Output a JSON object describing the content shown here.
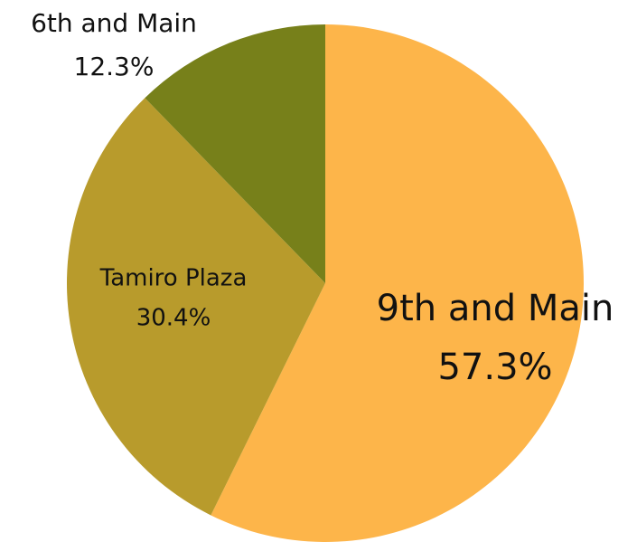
{
  "chart_data": {
    "type": "pie",
    "categories": [
      "9th and Main",
      "Tamiro Plaza",
      "6th and Main"
    ],
    "values": [
      57.3,
      30.4,
      12.3
    ],
    "value_labels": [
      "57.3%",
      "30.4%",
      "12.3%"
    ],
    "colors": [
      "#fdb54a",
      "#b89b2c",
      "#77801a"
    ]
  }
}
